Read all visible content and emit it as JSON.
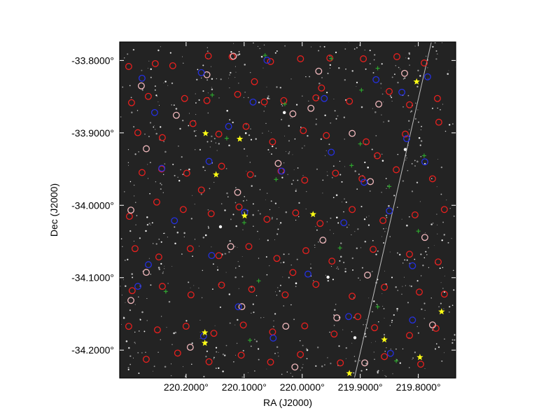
{
  "chart_data": {
    "type": "scatter",
    "title": "",
    "xlabel": "RA (J2000)",
    "ylabel": "Dec (J2000)",
    "xlim": [
      220.3144,
      219.7356
    ],
    "ylim": [
      -34.2385,
      -33.7745
    ],
    "x_ticks": [
      {
        "value": 220.2,
        "label": "220.2000°"
      },
      {
        "value": 220.1,
        "label": "220.1000°"
      },
      {
        "value": 220.0,
        "label": "220.0000°"
      },
      {
        "value": 219.9,
        "label": "219.9000°"
      },
      {
        "value": 219.8,
        "label": "219.8000°"
      }
    ],
    "y_ticks": [
      {
        "value": -33.8,
        "label": "-33.8000°"
      },
      {
        "value": -33.9,
        "label": "-33.9000°"
      },
      {
        "value": -34.0,
        "label": "-34.0000°"
      },
      {
        "value": -34.1,
        "label": "-34.1000°"
      },
      {
        "value": -34.2,
        "label": "-34.2000°"
      }
    ],
    "background": "star field image",
    "grid": false,
    "legend": "none",
    "streak": {
      "start": [
        219.7775,
        -33.7745
      ],
      "end": [
        219.91,
        -34.2385
      ],
      "color": "#bdbdbd"
    },
    "series": [
      {
        "marker": "red-circle",
        "color": "#e8201e",
        "points": [
          [
            220.2988,
            -33.8083
          ],
          [
            220.2531,
            -33.8044
          ],
          [
            220.223,
            -33.8073
          ],
          [
            220.1617,
            -33.7938
          ],
          [
            220.1208,
            -33.7948
          ],
          [
            220.0546,
            -33.8015
          ],
          [
            220.0029,
            -33.7977
          ],
          [
            219.9524,
            -33.7967
          ],
          [
            219.8946,
            -33.7977
          ],
          [
            219.8369,
            -33.7948
          ],
          [
            219.7899,
            -33.8035
          ],
          [
            220.294,
            -33.8583
          ],
          [
            220.2651,
            -33.8496
          ],
          [
            220.2026,
            -33.8525
          ],
          [
            220.1641,
            -33.8554
          ],
          [
            220.1112,
            -33.8468
          ],
          [
            220.0654,
            -33.8573
          ],
          [
            220.0318,
            -33.8554
          ],
          [
            219.9764,
            -33.8516
          ],
          [
            219.9187,
            -33.8564
          ],
          [
            219.8501,
            -33.8428
          ],
          [
            219.8152,
            -33.8612
          ],
          [
            219.7671,
            -33.8525
          ],
          [
            220.2832,
            -33.8998
          ],
          [
            220.241,
            -33.9065
          ],
          [
            220.1881,
            -33.8872
          ],
          [
            220.1436,
            -33.9017
          ],
          [
            220.0967,
            -33.8911
          ],
          [
            220.051,
            -33.9123
          ],
          [
            219.9981,
            -33.8969
          ],
          [
            219.9584,
            -33.9036
          ],
          [
            219.8898,
            -33.9123
          ],
          [
            219.8224,
            -33.9017
          ],
          [
            219.7647,
            -33.8853
          ],
          [
            220.2759,
            -33.9548
          ],
          [
            220.2422,
            -33.9499
          ],
          [
            220.1989,
            -33.9557
          ],
          [
            220.1388,
            -33.9461
          ],
          [
            220.0894,
            -33.9576
          ],
          [
            220.0366,
            -33.9528
          ],
          [
            219.9957,
            -33.9653
          ],
          [
            219.9427,
            -33.9557
          ],
          [
            219.897,
            -33.9634
          ],
          [
            219.838,
            -33.9509
          ],
          [
            219.7755,
            -33.9634
          ],
          [
            220.2976,
            -34.0153
          ],
          [
            220.2506,
            -33.9956
          ],
          [
            220.2049,
            -34.0058
          ],
          [
            220.1568,
            -34.0116
          ],
          [
            220.1088,
            -34.0023
          ],
          [
            220.0607,
            -34.0194
          ],
          [
            220.0113,
            -34.0105
          ],
          [
            219.9692,
            -34.0251
          ],
          [
            219.9139,
            -34.0058
          ],
          [
            219.8609,
            -34.0211
          ],
          [
            219.8056,
            -34.0133
          ],
          [
            219.7551,
            -34.0058
          ],
          [
            220.288,
            -34.0599
          ],
          [
            220.247,
            -34.0714
          ],
          [
            220.1929,
            -34.0599
          ],
          [
            220.1436,
            -34.0695
          ],
          [
            220.0919,
            -34.057
          ],
          [
            220.0437,
            -34.0734
          ],
          [
            219.9937,
            -34.0627
          ],
          [
            219.9488,
            -34.0772
          ],
          [
            219.8778,
            -34.0608
          ],
          [
            219.8152,
            -34.0676
          ],
          [
            219.7657,
            -34.0782
          ],
          [
            220.2929,
            -34.1179
          ],
          [
            220.241,
            -34.112
          ],
          [
            220.1917,
            -34.1237
          ],
          [
            220.1389,
            -34.1102
          ],
          [
            220.087,
            -34.1159
          ],
          [
            220.0293,
            -34.1237
          ],
          [
            219.9764,
            -34.1093
          ],
          [
            219.9139,
            -34.1256
          ],
          [
            219.8585,
            -34.1131
          ],
          [
            219.7983,
            -34.1198
          ],
          [
            219.7551,
            -34.1227
          ],
          [
            220.2988,
            -34.1672
          ],
          [
            220.2494,
            -34.172
          ],
          [
            220.2001,
            -34.1671
          ],
          [
            220.1522,
            -34.1768
          ],
          [
            220.1015,
            -34.1653
          ],
          [
            220.051,
            -34.1749
          ],
          [
            219.9957,
            -34.1666
          ],
          [
            219.9451,
            -34.1778
          ],
          [
            219.8753,
            -34.1691
          ],
          [
            219.8152,
            -34.1797
          ],
          [
            219.7695,
            -34.17
          ],
          [
            220.2687,
            -34.2127
          ],
          [
            220.2145,
            -34.2041
          ],
          [
            220.1605,
            -34.2161
          ],
          [
            220.1051,
            -34.207
          ],
          [
            220.0545,
            -34.2166
          ],
          [
            220.0032,
            -34.206
          ],
          [
            219.9343,
            -34.2176
          ],
          [
            219.8585,
            -34.2089
          ],
          [
            219.7959,
            -34.2195
          ],
          [
            220.0823,
            -33.8293
          ],
          [
            219.9668,
            -33.838
          ],
          [
            219.8706,
            -33.9316
          ],
          [
            220.1737,
            -33.9789
          ],
          [
            220.0161,
            -34.0928
          ],
          [
            219.9042,
            -34.1537
          ]
        ]
      },
      {
        "marker": "pink-circle",
        "color": "#f2b9bd",
        "points": [
          [
            220.2771,
            -33.8351
          ],
          [
            220.1641,
            -33.8197
          ],
          [
            220.1184,
            -33.7941
          ],
          [
            219.9716,
            -33.8148
          ],
          [
            219.8236,
            -33.8178
          ],
          [
            220.2169,
            -33.8757
          ],
          [
            220.0161,
            -33.8737
          ],
          [
            219.9139,
            -33.9007
          ],
          [
            219.8681,
            -33.8602
          ],
          [
            220.2686,
            -33.9219
          ],
          [
            220.0414,
            -33.9422
          ],
          [
            219.8826,
            -33.9673
          ],
          [
            220.2951,
            -34.0067
          ],
          [
            220.1112,
            -33.9821
          ],
          [
            219.9644,
            -34.0482
          ],
          [
            219.7888,
            -34.0444
          ],
          [
            220.2686,
            -34.0926
          ],
          [
            220.1232,
            -34.057
          ],
          [
            219.8875,
            -34.0964
          ],
          [
            220.2951,
            -34.1314
          ],
          [
            220.0282,
            -34.1671
          ],
          [
            219.9403,
            -34.1555
          ],
          [
            219.7755,
            -34.1652
          ],
          [
            220.1929,
            -34.1961
          ],
          [
            220.0126,
            -34.2233
          ],
          [
            219.8922,
            -34.2176
          ],
          [
            219.985,
            -33.866
          ],
          [
            220.104,
            -34.14
          ]
        ]
      },
      {
        "marker": "blue-circle",
        "color": "#2430e0",
        "points": [
          [
            220.2759,
            -33.8246
          ],
          [
            220.1738,
            -33.8168
          ],
          [
            220.0607,
            -33.7996
          ],
          [
            219.8728,
            -33.8265
          ],
          [
            219.784,
            -33.8226
          ],
          [
            220.2542,
            -33.8719
          ],
          [
            220.0847,
            -33.8574
          ],
          [
            219.962,
            -33.8525
          ],
          [
            219.8283,
            -33.8439
          ],
          [
            220.1268,
            -33.8911
          ],
          [
            219.95,
            -33.9267
          ],
          [
            219.82,
            -33.908
          ],
          [
            220.2418,
            -33.9489
          ],
          [
            220.1605,
            -33.9393
          ],
          [
            220.0354,
            -33.9528
          ],
          [
            219.8935,
            -33.9682
          ],
          [
            219.7888,
            -33.94
          ],
          [
            220.2201,
            -34.0213
          ],
          [
            220.0991,
            -34.0097
          ],
          [
            219.9283,
            -34.0241
          ],
          [
            219.8499,
            -34.0077
          ],
          [
            220.265,
            -34.082
          ],
          [
            220.156,
            -34.0693
          ],
          [
            219.99,
            -34.095
          ],
          [
            219.81,
            -34.0835
          ],
          [
            220.283,
            -34.112
          ],
          [
            220.11,
            -34.1401
          ],
          [
            219.92,
            -34.1536
          ],
          [
            219.81,
            -34.1585
          ],
          [
            220.17,
            -34.1806
          ],
          [
            220.05,
            -34.1834
          ],
          [
            219.848,
            -34.2045
          ]
        ]
      },
      {
        "marker": "green-cross",
        "color": "#2ea52e",
        "points": [
          [
            220.064,
            -33.793
          ],
          [
            219.95,
            -33.7974
          ],
          [
            219.87,
            -33.8108
          ],
          [
            220.155,
            -33.8477
          ],
          [
            220.03,
            -33.8602
          ],
          [
            219.898,
            -33.8409
          ],
          [
            220.13,
            -33.9075
          ],
          [
            219.9,
            -33.9152
          ],
          [
            219.79,
            -33.9315
          ],
          [
            220.045,
            -33.9643
          ],
          [
            219.915,
            -33.945
          ],
          [
            219.85,
            -33.974
          ],
          [
            220.1,
            -34.024
          ],
          [
            219.935,
            -34.0589
          ],
          [
            219.8,
            -34.0357
          ],
          [
            220.235,
            -34.119
          ],
          [
            220.075,
            -34.1044
          ],
          [
            219.87,
            -34.1402
          ],
          [
            220.09,
            -34.1864
          ],
          [
            219.838,
            -34.2149
          ]
        ]
      },
      {
        "marker": "yellow-star",
        "color": "#ffff14",
        "points": [
          [
            219.8029,
            -33.8293
          ],
          [
            220.1665,
            -33.9007
          ],
          [
            220.1075,
            -33.9084
          ],
          [
            220.1484,
            -33.9576
          ],
          [
            220.0991,
            -34.0144
          ],
          [
            219.9813,
            -34.0125
          ],
          [
            220.1677,
            -34.1758
          ],
          [
            220.1677,
            -34.1903
          ],
          [
            219.8585,
            -34.1855
          ],
          [
            219.7972,
            -34.2099
          ],
          [
            219.9187,
            -34.2321
          ],
          [
            219.7599,
            -34.1469
          ]
        ]
      }
    ]
  }
}
